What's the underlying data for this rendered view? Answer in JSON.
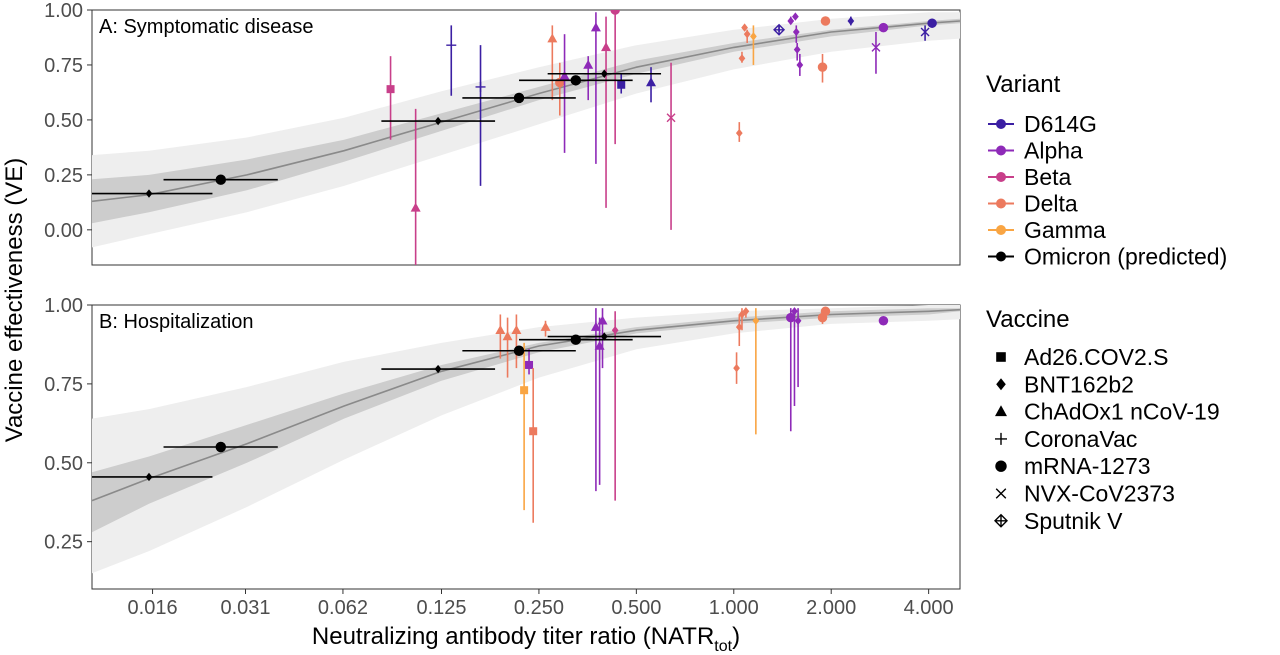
{
  "figure": {
    "ylabel": "Vaccine effectiveness (VE)",
    "xlabel_main": "Neutralizing antibody titer ratio (NATR",
    "xlabel_sub": "tot",
    "xlabel_close": ")"
  },
  "colors": {
    "D614G": "#3b1fa3",
    "Alpha": "#8e2ab8",
    "Beta": "#c83f8a",
    "Delta": "#ec7a5e",
    "Gamma": "#f9a543",
    "Omicron (predicted)": "#000000",
    "ci_outer": "#eeeeee",
    "ci_inner": "#cdcdcd",
    "fit_line": "#8a8a8a"
  },
  "legend": {
    "variant_title": "Variant",
    "variants": [
      "D614G",
      "Alpha",
      "Beta",
      "Delta",
      "Gamma",
      "Omicron (predicted)"
    ],
    "vaccine_title": "Vaccine",
    "vaccines": [
      {
        "label": "Ad26.COV2.S",
        "shape": "square"
      },
      {
        "label": "BNT162b2",
        "shape": "diamond"
      },
      {
        "label": "ChAdOx1 nCoV-19",
        "shape": "triangle"
      },
      {
        "label": "CoronaVac",
        "shape": "plus"
      },
      {
        "label": "mRNA-1273",
        "shape": "circle"
      },
      {
        "label": "NVX-CoV2373",
        "shape": "cross"
      },
      {
        "label": "Sputnik V",
        "shape": "crossdiamond"
      }
    ]
  },
  "chart_data": [
    {
      "type": "scatter",
      "panel": "A",
      "title": "A: Symptomatic disease",
      "x_scale": "log2",
      "xlim": [
        0.0104,
        5.0
      ],
      "ylim": [
        -0.16,
        1.0
      ],
      "xticks": [
        0.016,
        0.031,
        0.062,
        0.125,
        0.25,
        0.5,
        1.0,
        2.0,
        4.0
      ],
      "xtick_labels": [
        "0.016",
        "0.031",
        "0.062",
        "0.125",
        "0.250",
        "0.500",
        "1.000",
        "2.000",
        "4.000"
      ],
      "yticks": [
        0.0,
        0.25,
        0.5,
        0.75,
        1.0
      ],
      "ytick_labels": [
        "0.00",
        "0.25",
        "0.50",
        "0.75",
        "1.00"
      ],
      "grid": false,
      "fit_curve": {
        "x": [
          0.0104,
          0.0156,
          0.0313,
          0.0625,
          0.125,
          0.25,
          0.5,
          1.0,
          2.0,
          4.0,
          5.0
        ],
        "y": [
          0.13,
          0.16,
          0.25,
          0.36,
          0.49,
          0.62,
          0.74,
          0.83,
          0.9,
          0.94,
          0.95
        ]
      },
      "ci_inner": {
        "x": [
          0.0104,
          0.0156,
          0.0313,
          0.0625,
          0.125,
          0.25,
          0.5,
          1.0,
          2.0,
          4.0,
          5.0
        ],
        "lower": [
          0.03,
          0.08,
          0.18,
          0.31,
          0.45,
          0.59,
          0.71,
          0.81,
          0.88,
          0.93,
          0.94
        ],
        "upper": [
          0.23,
          0.25,
          0.32,
          0.41,
          0.53,
          0.65,
          0.77,
          0.85,
          0.91,
          0.95,
          0.96
        ]
      },
      "ci_outer": {
        "x": [
          0.0104,
          0.0156,
          0.0313,
          0.0625,
          0.125,
          0.25,
          0.5,
          1.0,
          2.0,
          4.0,
          5.0
        ],
        "lower": [
          -0.08,
          -0.02,
          0.08,
          0.2,
          0.34,
          0.48,
          0.62,
          0.73,
          0.81,
          0.86,
          0.87
        ],
        "upper": [
          0.34,
          0.36,
          0.42,
          0.51,
          0.63,
          0.74,
          0.84,
          0.91,
          0.96,
          0.99,
          0.99
        ]
      },
      "points": [
        {
          "x": 0.0156,
          "y": 0.165,
          "variant": "Omicron (predicted)",
          "vaccine": "diamond",
          "xlo": 0.0104,
          "xhi": 0.0245
        },
        {
          "x": 0.026,
          "y": 0.228,
          "variant": "Omicron (predicted)",
          "vaccine": "circle",
          "xlo": 0.0173,
          "xhi": 0.039
        },
        {
          "x": 0.122,
          "y": 0.495,
          "variant": "Omicron (predicted)",
          "vaccine": "diamond",
          "xlo": 0.0815,
          "xhi": 0.183
        },
        {
          "x": 0.217,
          "y": 0.6,
          "variant": "Omicron (predicted)",
          "vaccine": "circle",
          "xlo": 0.145,
          "xhi": 0.325
        },
        {
          "x": 0.325,
          "y": 0.68,
          "variant": "Omicron (predicted)",
          "vaccine": "circle",
          "xlo": 0.217,
          "xhi": 0.487
        },
        {
          "x": 0.398,
          "y": 0.71,
          "variant": "Omicron (predicted)",
          "vaccine": "diamond",
          "xlo": 0.266,
          "xhi": 0.596
        },
        {
          "x": 0.087,
          "y": 0.64,
          "variant": "Beta",
          "vaccine": "square",
          "ylo": 0.41,
          "yhi": 0.79
        },
        {
          "x": 0.104,
          "y": 0.1,
          "variant": "Beta",
          "vaccine": "triangle",
          "ylo": -0.16,
          "yhi": 0.55
        },
        {
          "x": 0.134,
          "y": 0.84,
          "variant": "D614G",
          "vaccine": "plus",
          "ylo": 0.61,
          "yhi": 0.93
        },
        {
          "x": 0.165,
          "y": 0.65,
          "variant": "D614G",
          "vaccine": "plus",
          "ylo": 0.2,
          "yhi": 0.84
        },
        {
          "x": 0.275,
          "y": 0.87,
          "variant": "Delta",
          "vaccine": "triangle",
          "ylo": 0.59,
          "yhi": 0.93
        },
        {
          "x": 0.29,
          "y": 0.67,
          "variant": "Delta",
          "vaccine": "circle",
          "ylo": 0.52,
          "yhi": 0.76
        },
        {
          "x": 0.3,
          "y": 0.7,
          "variant": "Alpha",
          "vaccine": "triangle",
          "ylo": 0.35,
          "yhi": 0.89
        },
        {
          "x": 0.355,
          "y": 0.75,
          "variant": "Alpha",
          "vaccine": "triangle",
          "ylo": 0.59,
          "yhi": 0.79
        },
        {
          "x": 0.375,
          "y": 0.92,
          "variant": "Alpha",
          "vaccine": "triangle",
          "ylo": 0.3,
          "yhi": 0.99
        },
        {
          "x": 0.403,
          "y": 0.83,
          "variant": "Beta",
          "vaccine": "triangle",
          "ylo": 0.1,
          "yhi": 0.97
        },
        {
          "x": 0.43,
          "y": 1.0,
          "variant": "Beta",
          "vaccine": "circle",
          "ylo": 0.39,
          "yhi": 1.0
        },
        {
          "x": 0.449,
          "y": 0.66,
          "variant": "D614G",
          "vaccine": "square",
          "ylo": 0.62,
          "yhi": 0.71
        },
        {
          "x": 0.555,
          "y": 0.67,
          "variant": "D614G",
          "vaccine": "triangle",
          "ylo": 0.58,
          "yhi": 0.74
        },
        {
          "x": 0.64,
          "y": 0.51,
          "variant": "Beta",
          "vaccine": "cross",
          "ylo": 0.0,
          "yhi": 0.76
        },
        {
          "x": 1.04,
          "y": 0.44,
          "variant": "Delta",
          "vaccine": "diamond",
          "ylo": 0.4,
          "yhi": 0.49
        },
        {
          "x": 1.06,
          "y": 0.78,
          "variant": "Delta",
          "vaccine": "diamond",
          "ylo": 0.76,
          "yhi": 0.81
        },
        {
          "x": 1.08,
          "y": 0.92,
          "variant": "Delta",
          "vaccine": "diamond",
          "ylo": 0.91,
          "yhi": 0.93
        },
        {
          "x": 1.1,
          "y": 0.89,
          "variant": "Delta",
          "vaccine": "diamond",
          "ylo": 0.85,
          "yhi": 0.91
        },
        {
          "x": 1.15,
          "y": 0.88,
          "variant": "Gamma",
          "vaccine": "diamond",
          "ylo": 0.75,
          "yhi": 0.93
        },
        {
          "x": 1.38,
          "y": 0.91,
          "variant": "D614G",
          "vaccine": "crossdiamond",
          "ylo": 0.9,
          "yhi": 0.93
        },
        {
          "x": 1.5,
          "y": 0.95,
          "variant": "Alpha",
          "vaccine": "diamond",
          "ylo": 0.94,
          "yhi": 0.97
        },
        {
          "x": 1.55,
          "y": 0.97,
          "variant": "Alpha",
          "vaccine": "diamond",
          "ylo": 0.96,
          "yhi": 0.98
        },
        {
          "x": 1.56,
          "y": 0.9,
          "variant": "Alpha",
          "vaccine": "diamond",
          "ylo": 0.85,
          "yhi": 0.93
        },
        {
          "x": 1.57,
          "y": 0.82,
          "variant": "Alpha",
          "vaccine": "diamond",
          "ylo": 0.77,
          "yhi": 0.85
        },
        {
          "x": 1.6,
          "y": 0.75,
          "variant": "Alpha",
          "vaccine": "diamond",
          "ylo": 0.7,
          "yhi": 0.8
        },
        {
          "x": 1.88,
          "y": 0.74,
          "variant": "Delta",
          "vaccine": "circle",
          "ylo": 0.67,
          "yhi": 0.8
        },
        {
          "x": 1.92,
          "y": 0.95,
          "variant": "Delta",
          "vaccine": "circle",
          "ylo": 0.94,
          "yhi": 0.96
        },
        {
          "x": 2.3,
          "y": 0.95,
          "variant": "D614G",
          "vaccine": "diamond",
          "ylo": 0.93,
          "yhi": 0.97
        },
        {
          "x": 2.75,
          "y": 0.83,
          "variant": "Alpha",
          "vaccine": "cross",
          "ylo": 0.71,
          "yhi": 0.9
        },
        {
          "x": 2.9,
          "y": 0.92,
          "variant": "Alpha",
          "vaccine": "circle",
          "ylo": 0.9,
          "yhi": 0.94
        },
        {
          "x": 3.9,
          "y": 0.9,
          "variant": "D614G",
          "vaccine": "cross",
          "ylo": 0.86,
          "yhi": 0.93
        },
        {
          "x": 4.1,
          "y": 0.94,
          "variant": "D614G",
          "vaccine": "circle",
          "ylo": 0.92,
          "yhi": 0.96
        }
      ]
    },
    {
      "type": "scatter",
      "panel": "B",
      "title": "B: Hospitalization",
      "x_scale": "log2",
      "xlim": [
        0.0104,
        5.0
      ],
      "ylim": [
        0.1,
        1.0
      ],
      "xticks": [
        0.016,
        0.031,
        0.062,
        0.125,
        0.25,
        0.5,
        1.0,
        2.0,
        4.0
      ],
      "xtick_labels": [
        "0.016",
        "0.031",
        "0.062",
        "0.125",
        "0.250",
        "0.500",
        "1.000",
        "2.000",
        "4.000"
      ],
      "yticks": [
        0.25,
        0.5,
        0.75,
        1.0
      ],
      "ytick_labels": [
        "0.25",
        "0.50",
        "0.75",
        "1.00"
      ],
      "grid": false,
      "fit_curve": {
        "x": [
          0.0104,
          0.0156,
          0.0313,
          0.0625,
          0.125,
          0.25,
          0.5,
          1.0,
          2.0,
          4.0,
          5.0
        ],
        "y": [
          0.38,
          0.45,
          0.56,
          0.68,
          0.79,
          0.87,
          0.92,
          0.95,
          0.97,
          0.98,
          0.985
        ]
      },
      "ci_inner": {
        "x": [
          0.0104,
          0.0156,
          0.0313,
          0.0625,
          0.125,
          0.25,
          0.5,
          1.0,
          2.0,
          4.0,
          5.0
        ],
        "lower": [
          0.28,
          0.37,
          0.5,
          0.64,
          0.76,
          0.85,
          0.91,
          0.94,
          0.96,
          0.97,
          0.98
        ],
        "upper": [
          0.47,
          0.52,
          0.62,
          0.72,
          0.81,
          0.88,
          0.93,
          0.96,
          0.98,
          0.99,
          0.99
        ]
      },
      "ci_outer": {
        "x": [
          0.0104,
          0.0156,
          0.0313,
          0.0625,
          0.125,
          0.25,
          0.5,
          1.0,
          2.0,
          4.0,
          5.0
        ],
        "lower": [
          0.15,
          0.22,
          0.36,
          0.51,
          0.65,
          0.77,
          0.86,
          0.91,
          0.94,
          0.95,
          0.955
        ],
        "upper": [
          0.64,
          0.67,
          0.74,
          0.82,
          0.88,
          0.93,
          0.96,
          0.98,
          0.99,
          1.0,
          1.0
        ]
      },
      "points": [
        {
          "x": 0.0156,
          "y": 0.455,
          "variant": "Omicron (predicted)",
          "vaccine": "diamond",
          "xlo": 0.0104,
          "xhi": 0.0245
        },
        {
          "x": 0.026,
          "y": 0.55,
          "variant": "Omicron (predicted)",
          "vaccine": "circle",
          "xlo": 0.0173,
          "xhi": 0.039
        },
        {
          "x": 0.122,
          "y": 0.797,
          "variant": "Omicron (predicted)",
          "vaccine": "diamond",
          "xlo": 0.0815,
          "xhi": 0.183
        },
        {
          "x": 0.217,
          "y": 0.855,
          "variant": "Omicron (predicted)",
          "vaccine": "circle",
          "xlo": 0.145,
          "xhi": 0.325
        },
        {
          "x": 0.325,
          "y": 0.89,
          "variant": "Omicron (predicted)",
          "vaccine": "circle",
          "xlo": 0.217,
          "xhi": 0.487
        },
        {
          "x": 0.398,
          "y": 0.9,
          "variant": "Omicron (predicted)",
          "vaccine": "diamond",
          "xlo": 0.266,
          "xhi": 0.596
        },
        {
          "x": 0.19,
          "y": 0.92,
          "variant": "Delta",
          "vaccine": "triangle",
          "ylo": 0.83,
          "yhi": 0.97
        },
        {
          "x": 0.2,
          "y": 0.9,
          "variant": "Delta",
          "vaccine": "triangle",
          "ylo": 0.77,
          "yhi": 0.96
        },
        {
          "x": 0.213,
          "y": 0.92,
          "variant": "Delta",
          "vaccine": "triangle",
          "ylo": 0.8,
          "yhi": 0.97
        },
        {
          "x": 0.225,
          "y": 0.73,
          "variant": "Gamma",
          "vaccine": "square",
          "ylo": 0.35,
          "yhi": 0.88
        },
        {
          "x": 0.233,
          "y": 0.81,
          "variant": "Alpha",
          "vaccine": "square",
          "ylo": 0.78,
          "yhi": 0.86
        },
        {
          "x": 0.24,
          "y": 0.6,
          "variant": "Delta",
          "vaccine": "square",
          "ylo": 0.31,
          "yhi": 0.8
        },
        {
          "x": 0.262,
          "y": 0.93,
          "variant": "Delta",
          "vaccine": "triangle",
          "ylo": 0.9,
          "yhi": 0.95
        },
        {
          "x": 0.375,
          "y": 0.93,
          "variant": "Alpha",
          "vaccine": "triangle",
          "ylo": 0.41,
          "yhi": 0.99
        },
        {
          "x": 0.385,
          "y": 0.87,
          "variant": "Alpha",
          "vaccine": "triangle",
          "ylo": 0.43,
          "yhi": 0.96
        },
        {
          "x": 0.393,
          "y": 0.95,
          "variant": "Alpha",
          "vaccine": "triangle",
          "ylo": 0.8,
          "yhi": 0.99
        },
        {
          "x": 0.43,
          "y": 0.92,
          "variant": "Beta",
          "vaccine": "diamond",
          "ylo": 0.38,
          "yhi": 0.98
        },
        {
          "x": 1.02,
          "y": 0.8,
          "variant": "Delta",
          "vaccine": "diamond",
          "ylo": 0.75,
          "yhi": 0.85
        },
        {
          "x": 1.04,
          "y": 0.93,
          "variant": "Delta",
          "vaccine": "diamond",
          "ylo": 0.87,
          "yhi": 0.97
        },
        {
          "x": 1.06,
          "y": 0.97,
          "variant": "Delta",
          "vaccine": "diamond",
          "ylo": 0.92,
          "yhi": 0.99
        },
        {
          "x": 1.09,
          "y": 0.98,
          "variant": "Delta",
          "vaccine": "diamond",
          "ylo": 0.96,
          "yhi": 0.99
        },
        {
          "x": 1.17,
          "y": 0.95,
          "variant": "Gamma",
          "vaccine": "diamond",
          "ylo": 0.59,
          "yhi": 0.99
        },
        {
          "x": 1.5,
          "y": 0.96,
          "variant": "Alpha",
          "vaccine": "circle",
          "ylo": 0.6,
          "yhi": 0.99
        },
        {
          "x": 1.54,
          "y": 0.98,
          "variant": "Alpha",
          "vaccine": "diamond",
          "ylo": 0.68,
          "yhi": 0.99
        },
        {
          "x": 1.58,
          "y": 0.95,
          "variant": "Alpha",
          "vaccine": "diamond",
          "ylo": 0.74,
          "yhi": 0.99
        },
        {
          "x": 1.88,
          "y": 0.96,
          "variant": "Delta",
          "vaccine": "circle",
          "ylo": 0.94,
          "yhi": 0.98
        },
        {
          "x": 1.92,
          "y": 0.98,
          "variant": "Delta",
          "vaccine": "circle",
          "ylo": 0.97,
          "yhi": 0.99
        },
        {
          "x": 2.9,
          "y": 0.95,
          "variant": "Alpha",
          "vaccine": "circle",
          "ylo": 0.94,
          "yhi": 0.96
        }
      ]
    }
  ]
}
